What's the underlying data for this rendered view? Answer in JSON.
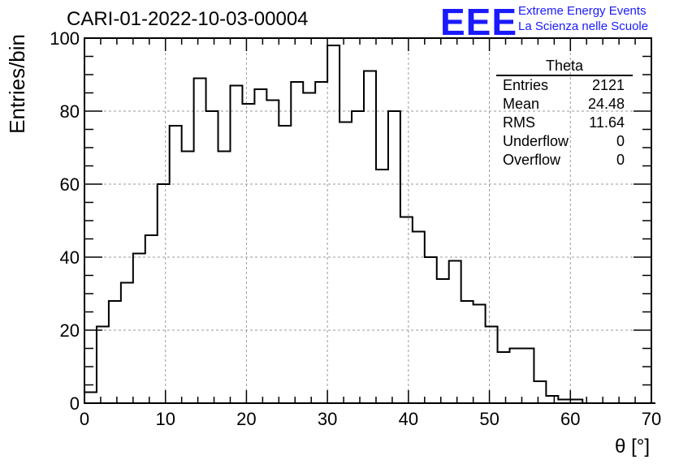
{
  "title": "CARI-01-2022-10-03-00004",
  "logo": {
    "mark": "EEE",
    "line1": "Extreme Energy Events",
    "line2": "La Scienza nelle Scuole"
  },
  "stats": {
    "name": "Theta",
    "rows": [
      {
        "label": "Entries",
        "value": "2121"
      },
      {
        "label": "Mean",
        "value": "24.48"
      },
      {
        "label": "RMS",
        "value": "11.64"
      },
      {
        "label": "Underflow",
        "value": "0"
      },
      {
        "label": "Overflow",
        "value": "0"
      }
    ]
  },
  "chart_data": {
    "type": "bar",
    "histogram": true,
    "title": "CARI-01-2022-10-03-00004",
    "xlabel": "θ [°]",
    "ylabel": "Entries/bin",
    "xlim": [
      0,
      70
    ],
    "ylim": [
      0,
      100
    ],
    "bin_width": 1.5,
    "x_ticks": [
      0,
      10,
      20,
      30,
      40,
      50,
      60,
      70
    ],
    "y_ticks": [
      0,
      20,
      40,
      60,
      80,
      100
    ],
    "grid": true,
    "values": [
      3,
      21,
      28,
      33,
      41,
      46,
      60,
      76,
      69,
      89,
      80,
      69,
      87,
      82,
      86,
      83,
      76,
      88,
      85,
      88,
      98,
      77,
      80,
      91,
      64,
      80,
      51,
      47,
      40,
      34,
      39,
      28,
      27,
      21,
      14,
      15,
      15,
      6,
      2,
      1,
      1,
      0,
      0,
      0,
      0,
      0,
      0
    ]
  }
}
